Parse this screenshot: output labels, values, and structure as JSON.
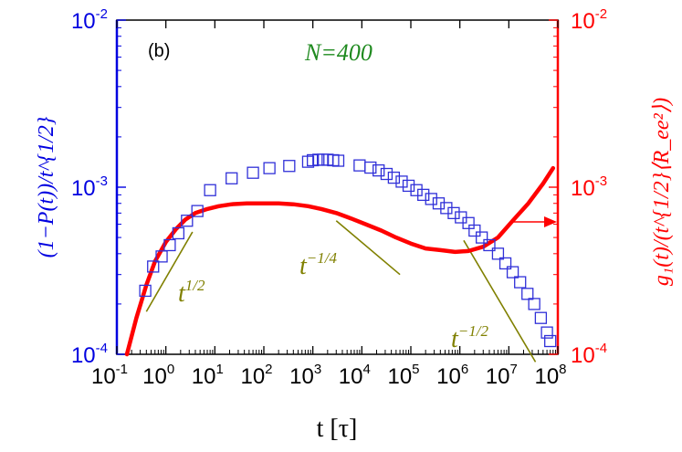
{
  "chart_data": {
    "type": "scatter",
    "panel_label": "(b)",
    "annotation": "N=400",
    "xlabel": "t [τ]",
    "ylabel_left": "(1−P(t))/t^{1/2}",
    "ylabel_right": "g₁(t)/(t^{1/2}⟨R_ee²⟩)",
    "xscale": "log",
    "yscale": "log",
    "xlim": [
      0.1,
      100000000
    ],
    "ylim": [
      0.0001,
      0.01
    ],
    "x_tick_labels": [
      {
        "base": "10",
        "exp": "-1"
      },
      {
        "base": "10",
        "exp": "0"
      },
      {
        "base": "10",
        "exp": "1"
      },
      {
        "base": "10",
        "exp": "2"
      },
      {
        "base": "10",
        "exp": "3"
      },
      {
        "base": "10",
        "exp": "4"
      },
      {
        "base": "10",
        "exp": "5"
      },
      {
        "base": "10",
        "exp": "6"
      },
      {
        "base": "10",
        "exp": "7"
      },
      {
        "base": "10",
        "exp": "8"
      }
    ],
    "y_left_tick_labels": [
      {
        "base": "10",
        "exp": "-4"
      },
      {
        "base": "10",
        "exp": "-3"
      },
      {
        "base": "10",
        "exp": "-2"
      }
    ],
    "y_right_tick_labels": [
      {
        "base": "10",
        "exp": "-4"
      },
      {
        "base": "10",
        "exp": "-3"
      },
      {
        "base": "10",
        "exp": "-2"
      }
    ],
    "colors": {
      "left_axis": "#0000e0",
      "right_axis": "#ff0000",
      "markers": "#3030d8",
      "curve": "#ff0000",
      "slope_lines": "#808000",
      "annotation": "#1f8a1f"
    },
    "series": [
      {
        "name": "(1-P(t))/t^{1/2}",
        "axis": "left",
        "marker": "open-square",
        "x": [
          0.38,
          0.55,
          0.82,
          1.2,
          1.8,
          2.7,
          4.4,
          8.0,
          22,
          60,
          130,
          330,
          800,
          1000,
          1300,
          1600,
          2000,
          2600,
          3300,
          9000,
          15000,
          22000,
          32000,
          45000,
          65000,
          90000,
          130000,
          180000,
          260000,
          370000,
          530000,
          750000,
          1050000,
          1500000,
          2000000,
          2800000,
          4000000,
          6000000,
          8500000,
          12000000,
          17000000,
          24000000,
          33000000,
          45000000,
          60000000,
          70000000
        ],
        "y": [
          0.00024,
          0.000335,
          0.000385,
          0.00045,
          0.00053,
          0.00063,
          0.00072,
          0.00096,
          0.00113,
          0.00122,
          0.0013,
          0.00134,
          0.00142,
          0.00145,
          0.00146,
          0.00146,
          0.00146,
          0.00145,
          0.00144,
          0.00135,
          0.00131,
          0.00126,
          0.0012,
          0.00114,
          0.00108,
          0.00102,
          0.00096,
          0.0009,
          0.00085,
          0.0008,
          0.00075,
          0.0007,
          0.00066,
          0.00061,
          0.00055,
          0.0005,
          0.00045,
          0.0004,
          0.00035,
          0.00031,
          0.00027,
          0.00023,
          0.0002,
          0.000165,
          0.000135,
          0.00012
        ]
      },
      {
        "name": "g1(t)/(t^{1/2}<Ree^2>)",
        "axis": "right",
        "marker": "line",
        "x": [
          0.16,
          0.25,
          0.4,
          0.6,
          1.0,
          1.6,
          2.5,
          4,
          7,
          12,
          22,
          45,
          100,
          200,
          400,
          800,
          1500,
          3000,
          6000,
          12000,
          25000,
          50000,
          100000,
          200000,
          400000,
          800000,
          1500000,
          3000000,
          6000000,
          12000000,
          25000000,
          50000000,
          80000000
        ],
        "y": [
          0.0001,
          0.000165,
          0.00026,
          0.00036,
          0.00047,
          0.00056,
          0.00064,
          0.0007,
          0.00074,
          0.00077,
          0.00079,
          0.0008,
          0.0008,
          0.0008,
          0.00079,
          0.00077,
          0.00074,
          0.0007,
          0.00065,
          0.0006,
          0.00055,
          0.0005,
          0.00046,
          0.00043,
          0.00042,
          0.00041,
          0.000415,
          0.00044,
          0.0005,
          0.00063,
          0.0008,
          0.00105,
          0.0013
        ]
      }
    ],
    "slope_guides": [
      {
        "label_base": "t",
        "label_exp": "1/2",
        "x": [
          0.4,
          3.5
        ],
        "y": [
          0.00018,
          0.00054
        ]
      },
      {
        "label_base": "t",
        "label_exp": "−1/4",
        "x": [
          3000,
          60000
        ],
        "y": [
          0.00063,
          0.0003
        ]
      },
      {
        "label_base": "t",
        "label_exp": "−1/2",
        "x": [
          1200000,
          35000000
        ],
        "y": [
          0.00048,
          9e-05
        ]
      }
    ],
    "legend": "arrow pointing right marks the red curve as using the right axis"
  }
}
